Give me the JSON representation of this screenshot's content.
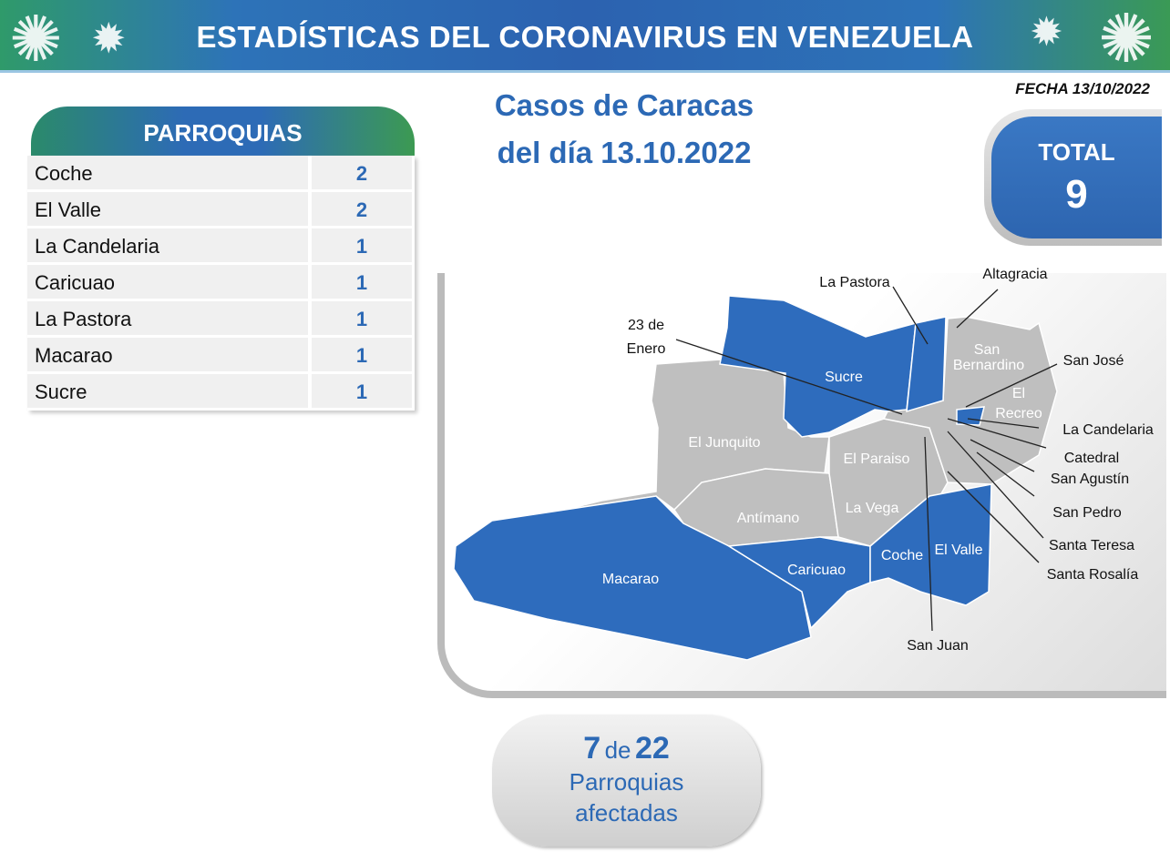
{
  "banner": {
    "title": "ESTADÍSTICAS DEL CORONAVIRUS EN VENEZUELA",
    "icon": "virus-icon"
  },
  "fecha": "FECHA 13/10/2022",
  "title": {
    "line1": "Casos de Caracas",
    "line2": "del día 13.10.2022"
  },
  "total": {
    "label": "TOTAL",
    "value": "9"
  },
  "parroquias": {
    "header": "PARROQUIAS",
    "rows": [
      {
        "name": "Coche",
        "count": "2"
      },
      {
        "name": "El Valle",
        "count": "2"
      },
      {
        "name": "La Candelaria",
        "count": "1"
      },
      {
        "name": "Caricuao",
        "count": "1"
      },
      {
        "name": "La Pastora",
        "count": "1"
      },
      {
        "name": "Macarao",
        "count": "1"
      },
      {
        "name": "Sucre",
        "count": "1"
      }
    ]
  },
  "map": {
    "colors": {
      "affected": "#2e6cbd",
      "unaffected": "#bfbfbf"
    },
    "inner_labels": {
      "sucre": "Sucre",
      "el_junquito": "El Junquito",
      "el_paraiso": "El Paraiso",
      "la_vega": "La Vega",
      "antimano": "Antímano",
      "macarao": "Macarao",
      "caricuao": "Caricuao",
      "coche": "Coche",
      "el_valle": "El Valle",
      "san_bernardino_1": "San",
      "san_bernardino_2": "Bernardino",
      "el_recreo_1": "El",
      "el_recreo_2": "Recreo"
    },
    "callouts": {
      "la_pastora": "La Pastora",
      "altagracia": "Altagracia",
      "enero_1": "23 de",
      "enero_2": "Enero",
      "san_jose": "San José",
      "la_candelaria": "La Candelaria",
      "catedral": "Catedral",
      "san_agustin": "San Agustín",
      "san_pedro": "San Pedro",
      "santa_teresa": "Santa Teresa",
      "santa_rosalia": "Santa Rosalía",
      "san_juan": "San Juan"
    }
  },
  "afectadas": {
    "affected": "7",
    "de": "de",
    "total": "22",
    "line1": "Parroquias",
    "line2": "afectadas"
  }
}
